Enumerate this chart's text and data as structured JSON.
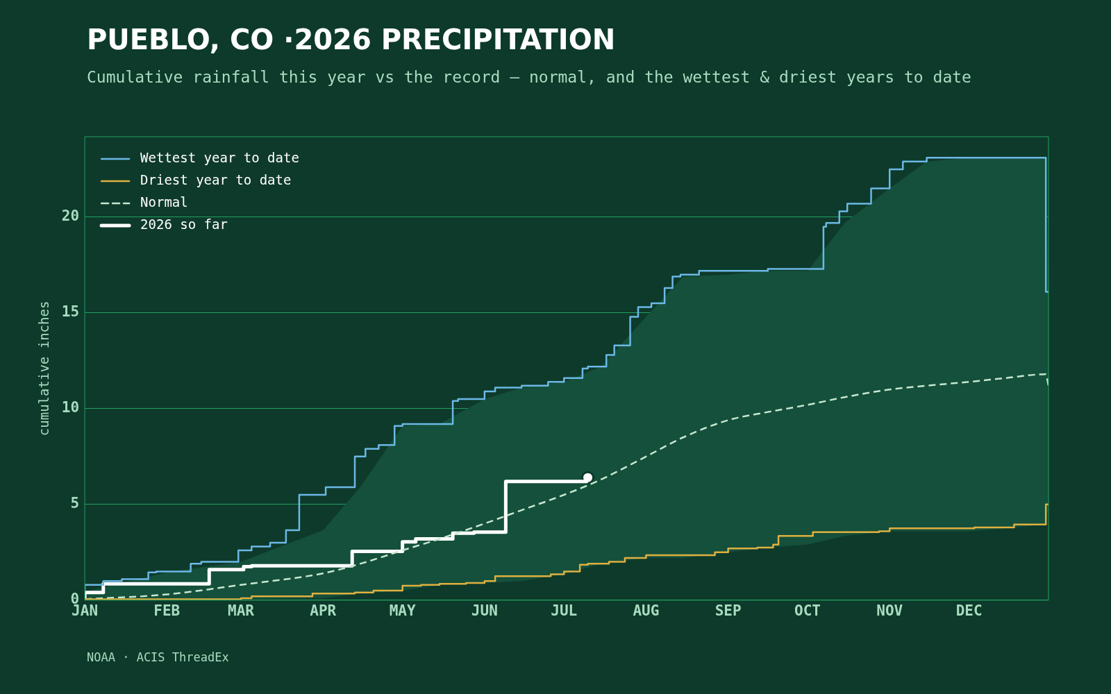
{
  "chart_data": {
    "type": "line",
    "title": "PUEBLO, CO ·2026 PRECIPITATION",
    "subtitle": "Cumulative rainfall this year vs the record — normal, and the wettest & driest years to date",
    "ylabel": "cumulative inches",
    "xlim": [
      "2026-01-01",
      "2026-12-31"
    ],
    "xticks": [
      {
        "value": "2026-01-01",
        "label": "JAN"
      },
      {
        "value": "2026-02-01",
        "label": "FEB"
      },
      {
        "value": "2026-03-01",
        "label": "MAR"
      },
      {
        "value": "2026-04-01",
        "label": "APR"
      },
      {
        "value": "2026-05-01",
        "label": "MAY"
      },
      {
        "value": "2026-06-01",
        "label": "JUN"
      },
      {
        "value": "2026-07-01",
        "label": "JUL"
      },
      {
        "value": "2026-08-01",
        "label": "AUG"
      },
      {
        "value": "2026-09-01",
        "label": "SEP"
      },
      {
        "value": "2026-10-01",
        "label": "OCT"
      },
      {
        "value": "2026-11-01",
        "label": "NOV"
      },
      {
        "value": "2026-12-01",
        "label": "DEC"
      }
    ],
    "ylim": [
      0,
      24.2
    ],
    "yticks": [
      0,
      5,
      10,
      15,
      20
    ],
    "grid": "y",
    "legend": "top left",
    "series": [
      {
        "name": "Wettest year to date",
        "type": "step",
        "color": "#6cb8e6",
        "x": [
          "2026-01-01",
          "2026-01-08",
          "2026-01-15",
          "2026-01-25",
          "2026-01-28",
          "2026-02-10",
          "2026-02-14",
          "2026-02-28",
          "2026-03-05",
          "2026-03-12",
          "2026-03-18",
          "2026-03-23",
          "2026-04-02",
          "2026-04-13",
          "2026-04-17",
          "2026-04-22",
          "2026-04-28",
          "2026-05-01",
          "2026-05-20",
          "2026-05-22",
          "2026-06-01",
          "2026-06-05",
          "2026-06-15",
          "2026-06-25",
          "2026-07-01",
          "2026-07-08",
          "2026-07-10",
          "2026-07-17",
          "2026-07-20",
          "2026-07-26",
          "2026-07-29",
          "2026-08-03",
          "2026-08-08",
          "2026-08-11",
          "2026-08-14",
          "2026-08-21",
          "2026-09-16",
          "2026-10-07",
          "2026-10-08",
          "2026-10-13",
          "2026-10-16",
          "2026-10-25",
          "2026-11-01",
          "2026-11-06",
          "2026-11-15",
          "2026-11-20",
          "2026-12-30",
          "2026-12-31"
        ],
        "values": [
          0.45,
          0.8,
          1.0,
          1.1,
          1.45,
          1.5,
          1.9,
          2.0,
          2.6,
          2.8,
          3.0,
          3.65,
          5.5,
          5.9,
          7.5,
          7.9,
          8.1,
          9.1,
          9.2,
          10.4,
          10.5,
          10.9,
          11.1,
          11.2,
          11.4,
          11.6,
          12.1,
          12.2,
          12.8,
          13.3,
          14.8,
          15.3,
          15.5,
          16.3,
          16.9,
          17.0,
          17.2,
          17.3,
          19.5,
          19.7,
          20.3,
          20.7,
          21.5,
          22.5,
          22.9,
          23.1,
          23.1,
          16.1
        ]
      },
      {
        "name": "Driest year to date",
        "type": "step",
        "color": "#e0b040",
        "x": [
          "2026-01-01",
          "2026-03-01",
          "2026-03-05",
          "2026-03-28",
          "2026-04-13",
          "2026-04-20",
          "2026-05-01",
          "2026-05-08",
          "2026-05-15",
          "2026-05-25",
          "2026-06-01",
          "2026-06-05",
          "2026-06-26",
          "2026-07-01",
          "2026-07-07",
          "2026-07-10",
          "2026-07-18",
          "2026-07-24",
          "2026-08-01",
          "2026-08-27",
          "2026-09-01",
          "2026-09-12",
          "2026-09-18",
          "2026-09-20",
          "2026-10-03",
          "2026-10-28",
          "2026-11-01",
          "2026-12-03",
          "2026-12-18",
          "2026-12-20",
          "2026-12-30",
          "2026-12-31"
        ],
        "values": [
          0,
          0.05,
          0.1,
          0.2,
          0.35,
          0.4,
          0.5,
          0.75,
          0.8,
          0.85,
          0.9,
          1.0,
          1.25,
          1.35,
          1.5,
          1.85,
          1.9,
          2.0,
          2.2,
          2.35,
          2.5,
          2.7,
          2.75,
          2.9,
          3.35,
          3.55,
          3.6,
          3.75,
          3.8,
          3.95,
          3.95,
          5.0
        ]
      },
      {
        "name": "Normal",
        "type": "line",
        "line_style": "dashed",
        "color": "#c8e6d0",
        "x": [
          "2026-01-01",
          "2026-02-01",
          "2026-03-01",
          "2026-04-01",
          "2026-04-15",
          "2026-05-01",
          "2026-05-15",
          "2026-06-01",
          "2026-06-15",
          "2026-07-01",
          "2026-07-15",
          "2026-08-01",
          "2026-08-15",
          "2026-09-01",
          "2026-09-15",
          "2026-10-01",
          "2026-10-15",
          "2026-11-01",
          "2026-11-15",
          "2026-12-01",
          "2026-12-15",
          "2026-12-30",
          "2026-12-31"
        ],
        "values": [
          0.05,
          0.3,
          0.8,
          1.4,
          1.9,
          2.6,
          3.2,
          4.0,
          4.7,
          5.5,
          6.3,
          7.5,
          8.5,
          9.4,
          9.8,
          10.2,
          10.6,
          11.0,
          11.2,
          11.4,
          11.6,
          11.8,
          11.2
        ],
        "lower": [
          0,
          0,
          0.05,
          0.1,
          0.35,
          0.5,
          0.8,
          0.9,
          1.0,
          1.35,
          1.9,
          2.2,
          2.2,
          2.5,
          2.75,
          2.9,
          3.35,
          3.6,
          3.6,
          3.6,
          3.75,
          3.95,
          5.0
        ],
        "upper": [
          0.45,
          1.45,
          2.0,
          3.65,
          5.9,
          9.1,
          9.2,
          10.5,
          11.1,
          11.4,
          12.2,
          14.8,
          16.9,
          17.0,
          17.2,
          17.2,
          19.7,
          21.5,
          22.9,
          23.1,
          23.1,
          23.1,
          16.1
        ]
      },
      {
        "name": "2026 so far",
        "type": "step",
        "color": "#ffffff",
        "x": [
          "2026-01-01",
          "2026-01-08",
          "2026-02-17",
          "2026-03-02",
          "2026-03-05",
          "2026-04-12",
          "2026-05-01",
          "2026-05-06",
          "2026-05-20",
          "2026-05-28",
          "2026-06-09",
          "2026-06-23",
          "2026-07-10"
        ],
        "values": [
          0,
          0.4,
          0.85,
          1.6,
          1.75,
          1.8,
          2.55,
          3.05,
          3.2,
          3.5,
          3.55,
          6.2,
          6.2
        ]
      },
      {
        "type": "scatter",
        "marker": "circle",
        "color": "#ffffff",
        "x": [
          "2026-07-10"
        ],
        "values": [
          6.4
        ]
      }
    ],
    "annotations": [
      "NOAA · ACIS ThreadEx"
    ]
  }
}
